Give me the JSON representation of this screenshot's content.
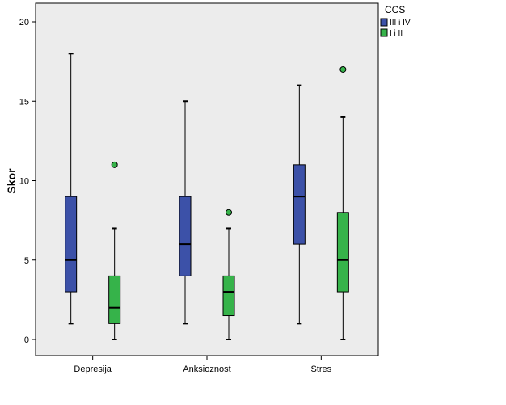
{
  "chart_data": {
    "type": "boxplot",
    "ylabel": "Skor",
    "xlabel": "",
    "ylim": [
      -1,
      21
    ],
    "yticks": [
      0,
      5,
      10,
      15,
      20
    ],
    "categories": [
      "Depresija",
      "Anksioznost",
      "Stres"
    ],
    "legend": {
      "title": "CCS",
      "position": "top-right"
    },
    "grid": false,
    "series": [
      {
        "name": "III i IV",
        "color": "#3c51a8",
        "boxes": [
          {
            "min": 1,
            "q1": 3,
            "median": 5,
            "q3": 9,
            "max": 18,
            "outliers": []
          },
          {
            "min": 1,
            "q1": 4,
            "median": 6,
            "q3": 9,
            "max": 15,
            "outliers": []
          },
          {
            "min": 1,
            "q1": 6,
            "median": 9,
            "q3": 11,
            "max": 16,
            "outliers": []
          }
        ]
      },
      {
        "name": "I i II",
        "color": "#36b34a",
        "boxes": [
          {
            "min": 0,
            "q1": 1,
            "median": 2,
            "q3": 4,
            "max": 7,
            "outliers": [
              11
            ]
          },
          {
            "min": 0,
            "q1": 1.5,
            "median": 3,
            "q3": 4,
            "max": 7,
            "outliers": [
              8
            ]
          },
          {
            "min": 0,
            "q1": 3,
            "median": 5,
            "q3": 8,
            "max": 14,
            "outliers": [
              17
            ]
          }
        ]
      }
    ],
    "plot_background": "#ececec"
  }
}
